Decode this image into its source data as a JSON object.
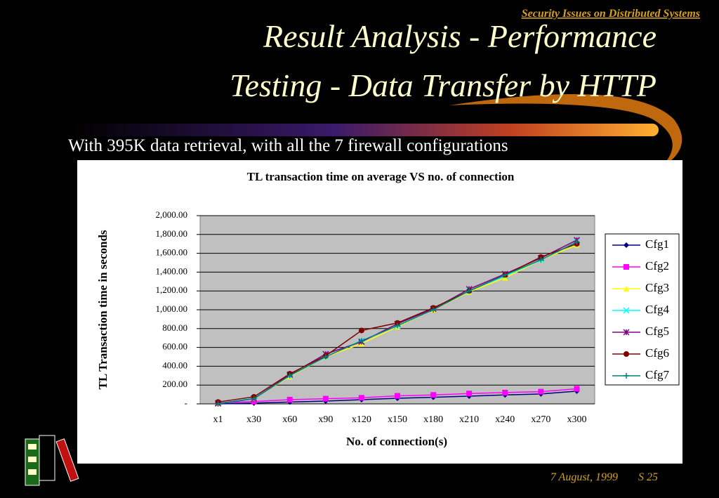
{
  "slide": {
    "header": "Security Issues on Distributed Systems",
    "title_line1": "Result Analysis - Performance",
    "title_line2": "Testing - Data Transfer by HTTP",
    "subtitle": "With 395K data retrieval,  with all the 7 firewall configurations",
    "date": "7 August, 1999",
    "slide_number": "S 25"
  },
  "chart_data": {
    "type": "line",
    "title": "TL transaction time on average VS no. of connection",
    "x_label": "No. of connection(s)",
    "y_label": "TL Transaction time in seconds",
    "categories": [
      "x1",
      "x30",
      "x60",
      "x90",
      "x120",
      "x150",
      "x180",
      "x210",
      "x240",
      "x270",
      "x300"
    ],
    "ylim": [
      0,
      2000
    ],
    "yticks": [
      {
        "value": 0,
        "label": "-"
      },
      {
        "value": 200,
        "label": "200.00"
      },
      {
        "value": 400,
        "label": "400.00"
      },
      {
        "value": 600,
        "label": "600.00"
      },
      {
        "value": 800,
        "label": "800.00"
      },
      {
        "value": 1000,
        "label": "1,000.00"
      },
      {
        "value": 1200,
        "label": "1,200.00"
      },
      {
        "value": 1400,
        "label": "1,400.00"
      },
      {
        "value": 1600,
        "label": "1,600.00"
      },
      {
        "value": 1800,
        "label": "1,800.00"
      },
      {
        "value": 2000,
        "label": "2,000.00"
      }
    ],
    "grid": true,
    "legend": "right",
    "series": [
      {
        "name": "Cfg1",
        "color": "#000080",
        "marker": "diamond",
        "values": [
          0,
          8,
          20,
          30,
          45,
          60,
          70,
          82,
          95,
          105,
          135
        ]
      },
      {
        "name": "Cfg2",
        "color": "#ff00ff",
        "marker": "square",
        "values": [
          10,
          25,
          45,
          55,
          65,
          85,
          95,
          110,
          120,
          130,
          160
        ]
      },
      {
        "name": "Cfg3",
        "color": "#ffff00",
        "marker": "triangle",
        "values": [
          5,
          60,
          290,
          500,
          640,
          820,
          1000,
          1190,
          1340,
          1530,
          1690
        ]
      },
      {
        "name": "Cfg4",
        "color": "#00ffff",
        "marker": "x",
        "values": [
          5,
          60,
          300,
          500,
          670,
          830,
          1010,
          1200,
          1360,
          1530,
          1720
        ]
      },
      {
        "name": "Cfg5",
        "color": "#800080",
        "marker": "star",
        "values": [
          5,
          55,
          310,
          530,
          660,
          850,
          1010,
          1220,
          1380,
          1550,
          1740
        ]
      },
      {
        "name": "Cfg6",
        "color": "#800000",
        "marker": "circle",
        "values": [
          20,
          75,
          320,
          510,
          780,
          860,
          1020,
          1200,
          1370,
          1560,
          1700
        ]
      },
      {
        "name": "Cfg7",
        "color": "#008080",
        "marker": "plus",
        "values": [
          0,
          55,
          300,
          500,
          670,
          830,
          1000,
          1200,
          1370,
          1530,
          1720
        ]
      }
    ]
  }
}
